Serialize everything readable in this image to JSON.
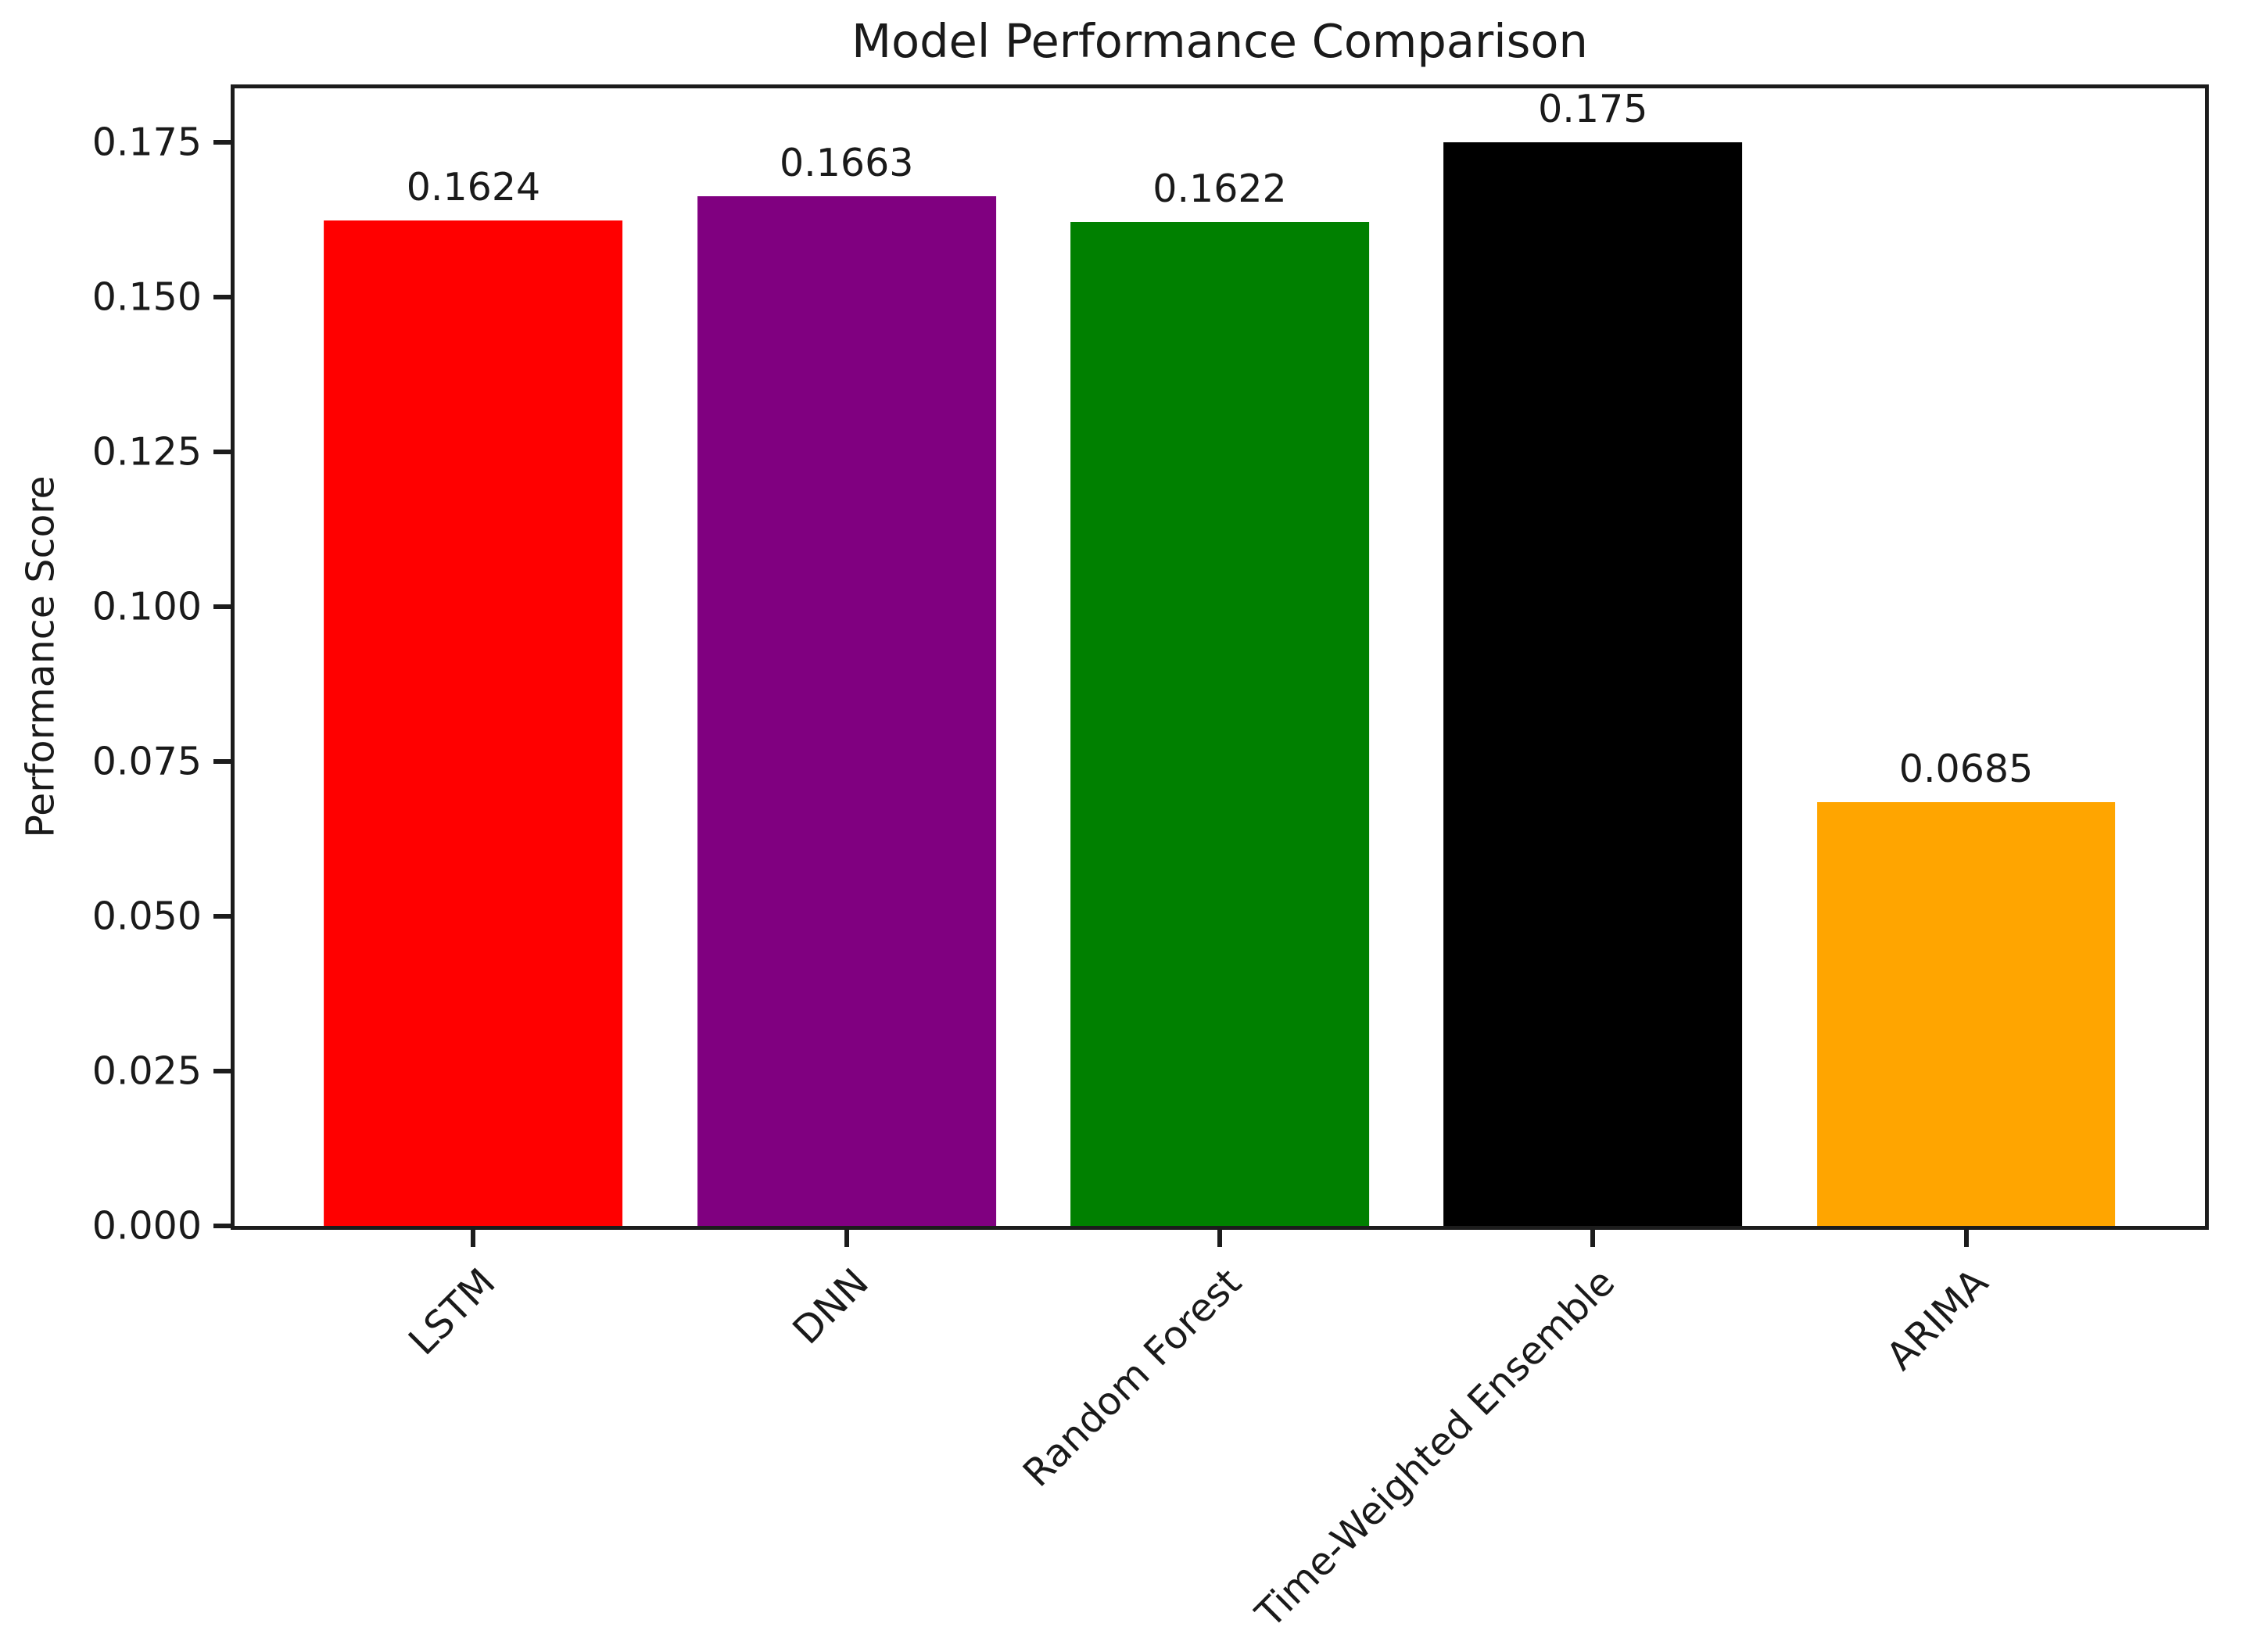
{
  "chart_data": {
    "type": "bar",
    "title": "Model Performance Comparison",
    "xlabel": "",
    "ylabel": "Performance Score",
    "categories": [
      "LSTM",
      "DNN",
      "Random Forest",
      "Time-Weighted Ensemble",
      "ARIMA"
    ],
    "values": [
      0.1624,
      0.1663,
      0.1622,
      0.175,
      0.0685
    ],
    "value_labels": [
      "0.1624",
      "0.1663",
      "0.1622",
      "0.175",
      "0.0685"
    ],
    "bar_colors": [
      "#ff0000",
      "#800080",
      "#008000",
      "#000000",
      "#ffa500"
    ],
    "yticks": [
      "0.000",
      "0.025",
      "0.050",
      "0.075",
      "0.100",
      "0.125",
      "0.150",
      "0.175"
    ],
    "ylim": [
      0,
      0.18375
    ],
    "grid": false,
    "legend": "none",
    "x_tick_rotation_deg": 45
  }
}
